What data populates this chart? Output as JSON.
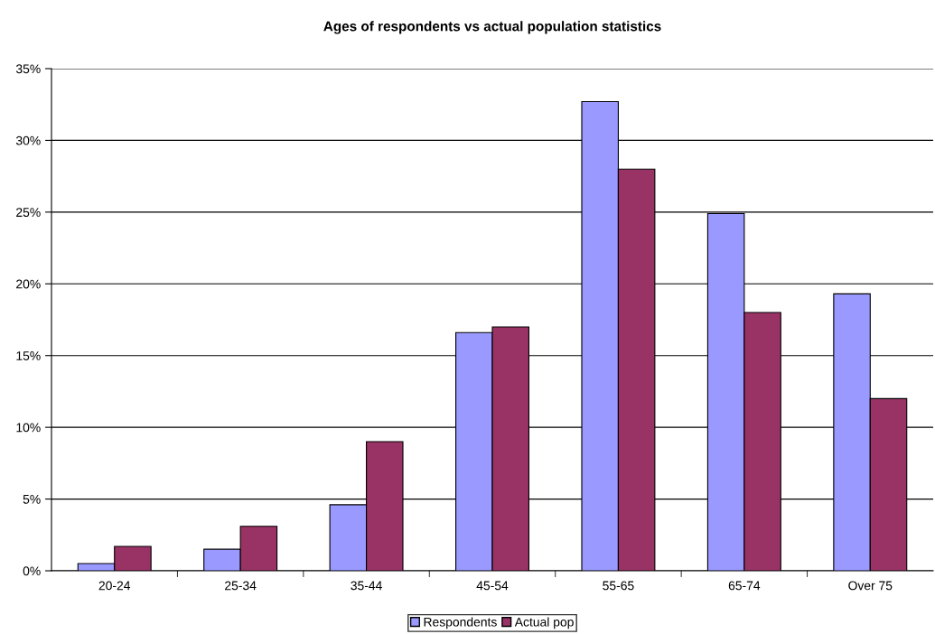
{
  "chart_data": {
    "type": "bar",
    "title": "Ages of respondents vs actual population statistics",
    "categories": [
      "20-24",
      "25-34",
      "35-44",
      "45-54",
      "55-65",
      "65-74",
      "Over 75"
    ],
    "series": [
      {
        "name": "Respondents",
        "color": "#9999ff",
        "values": [
          0.5,
          1.5,
          4.6,
          16.6,
          32.7,
          24.9,
          19.3
        ]
      },
      {
        "name": "Actual pop",
        "color": "#993366",
        "values": [
          1.7,
          3.1,
          9.0,
          17.0,
          28.0,
          18.0,
          12.0
        ]
      }
    ],
    "ylim": [
      0,
      35
    ],
    "yticks": [
      {
        "value": 0,
        "label": "0%"
      },
      {
        "value": 5,
        "label": "5%"
      },
      {
        "value": 10,
        "label": "10%"
      },
      {
        "value": 15,
        "label": "15%"
      },
      {
        "value": 20,
        "label": "20%"
      },
      {
        "value": 25,
        "label": "25%"
      },
      {
        "value": 30,
        "label": "30%"
      },
      {
        "value": 35,
        "label": "35%"
      }
    ],
    "grid": "y",
    "legend": "bottom"
  }
}
